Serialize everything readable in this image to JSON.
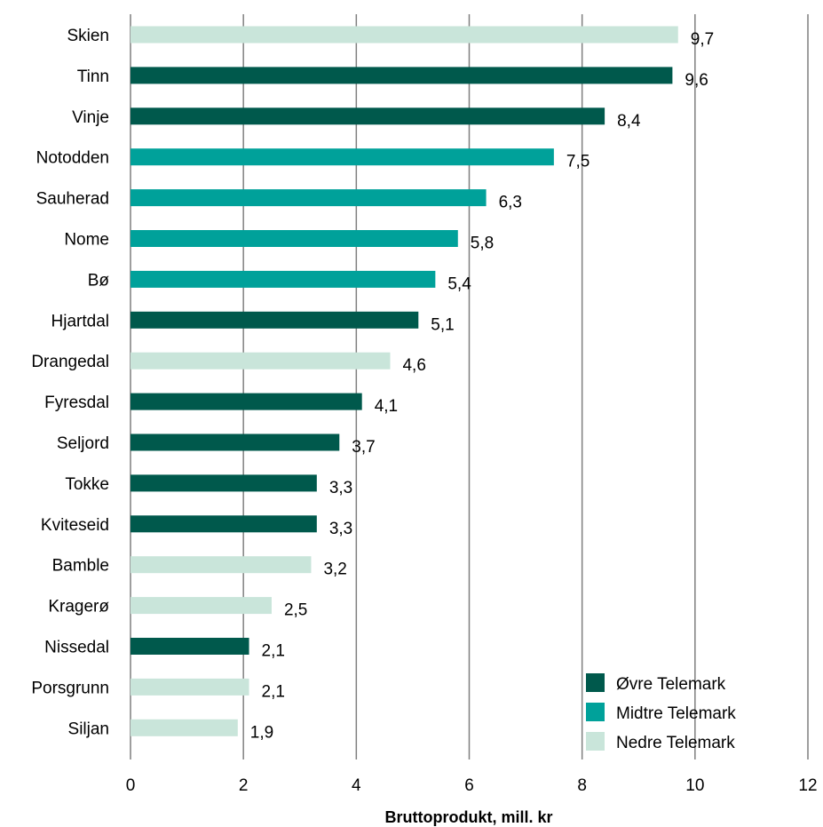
{
  "chart_data": {
    "type": "bar",
    "orientation": "horizontal",
    "categories": [
      "Skien",
      "Tinn",
      "Vinje",
      "Notodden",
      "Sauherad",
      "Nome",
      "Bø",
      "Hjartdal",
      "Drangedal",
      "Fyresdal",
      "Seljord",
      "Tokke",
      "Kviteseid",
      "Bamble",
      "Kragerø",
      "Nissedal",
      "Porsgrunn",
      "Siljan"
    ],
    "values": [
      9.7,
      9.6,
      8.4,
      7.5,
      6.3,
      5.8,
      5.4,
      5.1,
      4.6,
      4.1,
      3.7,
      3.3,
      3.3,
      3.2,
      2.5,
      2.1,
      2.1,
      1.9
    ],
    "value_labels": [
      "9,7",
      "9,6",
      "8,4",
      "7,5",
      "6,3",
      "5,8",
      "5,4",
      "5,1",
      "4,6",
      "4,1",
      "3,7",
      "3,3",
      "3,3",
      "3,2",
      "2,5",
      "2,1",
      "2,1",
      "1,9"
    ],
    "regions": [
      "Nedre Telemark",
      "Øvre Telemark",
      "Øvre Telemark",
      "Midtre Telemark",
      "Midtre Telemark",
      "Midtre Telemark",
      "Midtre Telemark",
      "Øvre Telemark",
      "Nedre Telemark",
      "Øvre Telemark",
      "Øvre Telemark",
      "Øvre Telemark",
      "Øvre Telemark",
      "Nedre Telemark",
      "Nedre Telemark",
      "Øvre Telemark",
      "Nedre Telemark",
      "Nedre Telemark"
    ],
    "legend": [
      {
        "name": "Øvre Telemark",
        "color": "#00594c"
      },
      {
        "name": "Midtre Telemark",
        "color": "#00a19a"
      },
      {
        "name": "Nedre Telemark",
        "color": "#c9e5da"
      }
    ],
    "legend_position": "bottom-right",
    "xlim": [
      0,
      12
    ],
    "xticks": [
      "0",
      "2",
      "4",
      "6",
      "8",
      "10",
      "12"
    ],
    "xlabel": "Bruttoprodukt, mill. kr",
    "grid": "vertical"
  }
}
